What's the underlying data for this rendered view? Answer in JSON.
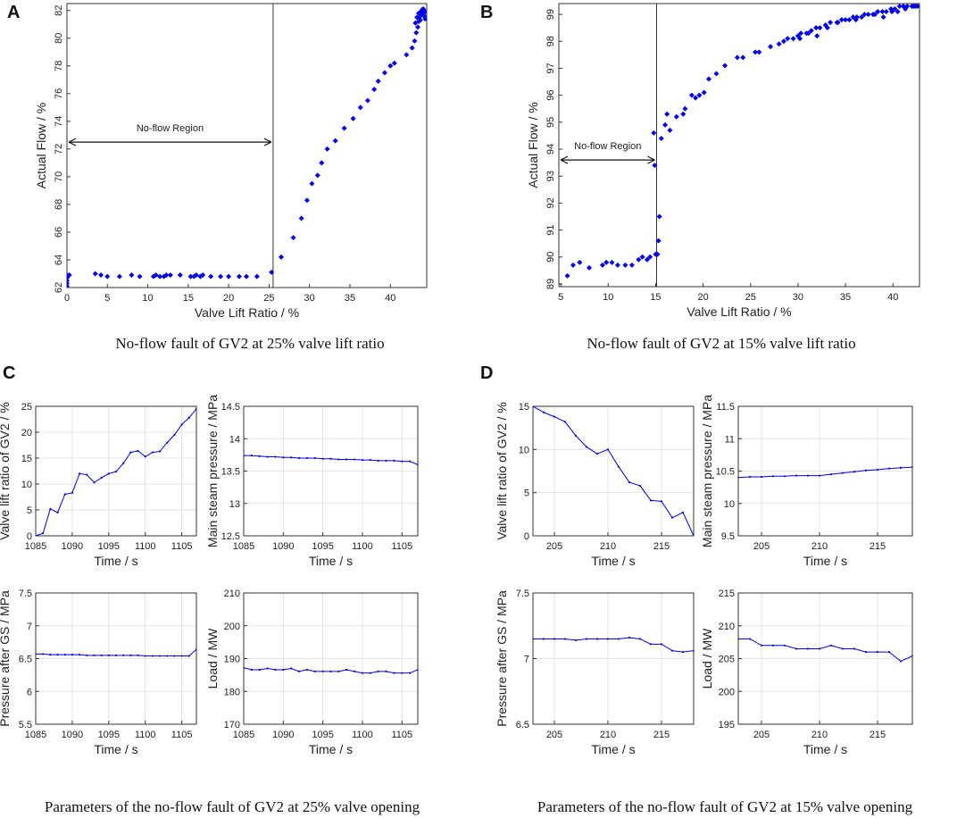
{
  "figure": {
    "panel_labels": [
      "A",
      "B",
      "C",
      "D"
    ],
    "captions": {
      "a": "No-flow fault of GV2 at 25% valve lift ratio",
      "b": "No-flow fault of GV2 at 15% valve lift ratio",
      "c": "Parameters of the no-flow fault of GV2 at 25% valve opening",
      "d": "Parameters of the no-flow fault of GV2 at 15% valve opening"
    }
  },
  "chart_data": [
    {
      "id": "A",
      "type": "scatter",
      "xlabel": "Valve Lift Ratio / %",
      "ylabel": "Actual Flow / %",
      "xlim": [
        0,
        44.5
      ],
      "ylim": [
        62,
        82.5
      ],
      "xticks": [
        0,
        5,
        10,
        15,
        20,
        25,
        30,
        35,
        40
      ],
      "yticks": [
        62,
        64,
        66,
        68,
        70,
        72,
        74,
        76,
        78,
        80,
        82
      ],
      "marker_color": "#0000ee",
      "vline": 25.5,
      "annotation": {
        "text": "No-flow Region",
        "x_from": 0,
        "x_to": 25.5,
        "y": 72.5
      },
      "x": [
        0,
        0,
        0,
        0,
        0,
        0.3,
        3.5,
        4.2,
        5,
        6.5,
        8,
        9,
        10.7,
        11,
        11.5,
        12,
        12.3,
        12.8,
        14,
        15.3,
        15.7,
        16,
        16.5,
        16.8,
        17.8,
        19,
        20,
        21.3,
        22.2,
        23.5,
        25.3,
        26.5,
        28,
        29,
        29.7,
        30.3,
        31,
        31.5,
        32.2,
        33.2,
        34.3,
        35.4,
        36.3,
        37.2,
        38,
        38.5,
        39.3,
        40,
        40.5,
        42,
        42.7,
        43,
        43.2,
        43.4,
        43.5,
        43.6,
        43.7,
        43.8,
        43.9,
        44,
        44.1,
        44.2,
        44.3,
        43.1,
        43.3,
        43.5,
        43.7,
        43.9,
        44.1,
        44.3
      ],
      "y": [
        62.1,
        62.3,
        62.5,
        62.7,
        62.9,
        62.9,
        63,
        62.9,
        62.8,
        62.8,
        62.9,
        62.8,
        62.8,
        62.9,
        62.8,
        62.8,
        62.9,
        62.9,
        62.9,
        62.8,
        62.8,
        62.9,
        62.8,
        62.9,
        62.8,
        62.8,
        62.8,
        62.8,
        62.8,
        62.8,
        63.1,
        64.2,
        65.6,
        67,
        68.3,
        69.5,
        70.1,
        71,
        72,
        72.6,
        73.5,
        74.2,
        75,
        75.5,
        76.3,
        76.9,
        77.5,
        78,
        78.2,
        78.8,
        79.3,
        79.8,
        80.4,
        80.8,
        81.2,
        81.5,
        81.7,
        81.9,
        82,
        82.1,
        81.8,
        81.6,
        81.9,
        81.1,
        81.5,
        81.8,
        81.3,
        81.7,
        82.1,
        81.4
      ]
    },
    {
      "id": "B",
      "type": "scatter",
      "xlabel": "Valve Lift Ratio / %",
      "ylabel": "Actual Flow / %",
      "xlim": [
        4.8,
        42.8
      ],
      "ylim": [
        88.9,
        99.4
      ],
      "xticks": [
        5,
        10,
        15,
        20,
        25,
        30,
        35,
        40
      ],
      "yticks": [
        89,
        90,
        91,
        92,
        93,
        94,
        95,
        96,
        97,
        98,
        99
      ],
      "marker_color": "#0000ee",
      "vline": 15.1,
      "annotation": {
        "text": "No-flow Region",
        "x_from": 4.8,
        "x_to": 15.1,
        "y": 93.6
      },
      "x": [
        5.7,
        6.3,
        7,
        8,
        9.4,
        9.8,
        10.4,
        11,
        11.8,
        12.5,
        13.2,
        13.6,
        14.1,
        14.4,
        14.8,
        14.9,
        15,
        15.2,
        15.3,
        15.4,
        15.6,
        16,
        16.2,
        16.5,
        17.2,
        17.9,
        18.1,
        18.8,
        19.2,
        19.6,
        20.1,
        20.6,
        21.4,
        22.3,
        23.6,
        24.2,
        25.5,
        25.9,
        27.1,
        28,
        28.5,
        28.9,
        29.5,
        30,
        30.3,
        30.9,
        31.4,
        31.9,
        32.3,
        32.9,
        33.4,
        34.1,
        34.6,
        35,
        35.4,
        35.8,
        36.2,
        36.7,
        37,
        37.4,
        37.9,
        38.4,
        38.9,
        39.3,
        39.8,
        40.2,
        40.7,
        41.1,
        41.5,
        42,
        42.4,
        30.2,
        31.1,
        32,
        33.1,
        34.2,
        36.1,
        38.1,
        39.9,
        41.3,
        42.2,
        42.6,
        39,
        40.5
      ],
      "y": [
        89.3,
        89.7,
        89.8,
        89.6,
        89.7,
        89.8,
        89.8,
        89.7,
        89.7,
        89.7,
        89.9,
        90,
        89.9,
        90,
        94.6,
        93.4,
        90.1,
        90.1,
        90.6,
        91.5,
        94.4,
        94.9,
        95.3,
        94.7,
        95.2,
        95.3,
        95.5,
        96,
        95.9,
        96,
        96.1,
        96.6,
        96.8,
        97.1,
        97.4,
        97.4,
        97.6,
        97.6,
        97.8,
        97.9,
        98,
        98.1,
        98.1,
        98.2,
        98.3,
        98.3,
        98.4,
        98.5,
        98.5,
        98.6,
        98.7,
        98.7,
        98.8,
        98.8,
        98.8,
        98.9,
        98.9,
        98.9,
        99,
        99,
        99,
        99.1,
        99.1,
        99.1,
        99.2,
        99.2,
        99.3,
        99.3,
        99.3,
        99.3,
        99.3,
        98.1,
        98.3,
        98.2,
        98.5,
        98.7,
        98.8,
        99,
        99.1,
        99.2,
        99.3,
        99.3,
        98.9,
        99.1
      ]
    },
    {
      "id": "C1",
      "type": "line",
      "xlabel": "Time / s",
      "ylabel": "Valve lift ratio of GV2 / %",
      "xlim": [
        1085,
        1107
      ],
      "ylim": [
        0,
        25
      ],
      "xticks": [
        1085,
        1090,
        1095,
        1100,
        1105
      ],
      "yticks": [
        0,
        5,
        10,
        15,
        20,
        25
      ],
      "line_color": "#0000ee",
      "x": [
        1085,
        1086,
        1087,
        1088,
        1089,
        1090,
        1091,
        1092,
        1093,
        1094,
        1095,
        1096,
        1097,
        1098,
        1099,
        1100,
        1101,
        1102,
        1103,
        1104,
        1105,
        1106,
        1107
      ],
      "y": [
        0,
        0.5,
        5.2,
        4.5,
        8,
        8.3,
        12,
        11.8,
        10.3,
        11.2,
        12,
        12.4,
        14,
        16.1,
        16.4,
        15.3,
        16.1,
        16.3,
        18,
        19.5,
        21.5,
        22.8,
        24.5
      ]
    },
    {
      "id": "C2",
      "type": "line",
      "xlabel": "Time / s",
      "ylabel": "Main steam pressure / MPa",
      "xlim": [
        1085,
        1107
      ],
      "ylim": [
        12.5,
        14.5
      ],
      "xticks": [
        1085,
        1090,
        1095,
        1100,
        1105
      ],
      "yticks": [
        12.5,
        13,
        13.5,
        14,
        14.5
      ],
      "line_color": "#0000ee",
      "x": [
        1085,
        1086,
        1087,
        1088,
        1089,
        1090,
        1091,
        1092,
        1093,
        1094,
        1095,
        1096,
        1097,
        1098,
        1099,
        1100,
        1101,
        1102,
        1103,
        1104,
        1105,
        1106,
        1107
      ],
      "y": [
        13.74,
        13.74,
        13.73,
        13.72,
        13.72,
        13.71,
        13.71,
        13.7,
        13.7,
        13.7,
        13.69,
        13.69,
        13.68,
        13.68,
        13.68,
        13.67,
        13.67,
        13.66,
        13.66,
        13.66,
        13.65,
        13.65,
        13.6
      ]
    },
    {
      "id": "C3",
      "type": "line",
      "xlabel": "Time / s",
      "ylabel": "Pressure after GS / MPa",
      "xlim": [
        1085,
        1107
      ],
      "ylim": [
        5.5,
        7.5
      ],
      "xticks": [
        1085,
        1090,
        1095,
        1100,
        1105
      ],
      "yticks": [
        5.5,
        6,
        6.5,
        7,
        7.5
      ],
      "line_color": "#0000ee",
      "x": [
        1085,
        1086,
        1087,
        1088,
        1089,
        1090,
        1091,
        1092,
        1093,
        1094,
        1095,
        1096,
        1097,
        1098,
        1099,
        1100,
        1101,
        1102,
        1103,
        1104,
        1105,
        1106,
        1107
      ],
      "y": [
        6.57,
        6.57,
        6.56,
        6.56,
        6.56,
        6.56,
        6.56,
        6.55,
        6.55,
        6.55,
        6.55,
        6.55,
        6.55,
        6.55,
        6.55,
        6.54,
        6.54,
        6.54,
        6.54,
        6.54,
        6.54,
        6.54,
        6.64
      ]
    },
    {
      "id": "C4",
      "type": "line",
      "xlabel": "Time / s",
      "ylabel": "Load / MW",
      "xlim": [
        1085,
        1107
      ],
      "ylim": [
        170,
        210
      ],
      "xticks": [
        1085,
        1090,
        1095,
        1100,
        1105
      ],
      "yticks": [
        170,
        180,
        190,
        200,
        210
      ],
      "line_color": "#0000ee",
      "x": [
        1085,
        1086,
        1087,
        1088,
        1089,
        1090,
        1091,
        1092,
        1093,
        1094,
        1095,
        1096,
        1097,
        1098,
        1099,
        1100,
        1101,
        1102,
        1103,
        1104,
        1105,
        1106,
        1107
      ],
      "y": [
        187.2,
        186.6,
        186.6,
        187,
        186.6,
        186.6,
        187,
        186.1,
        186.6,
        186.1,
        186.1,
        186.1,
        186.1,
        186.6,
        186.1,
        185.6,
        185.6,
        186.1,
        186.1,
        185.6,
        185.6,
        185.6,
        186.6
      ]
    },
    {
      "id": "D1",
      "type": "line",
      "xlabel": "Time / s",
      "ylabel": "Valve lift ratio of GV2 / %",
      "xlim": [
        203,
        218
      ],
      "ylim": [
        0,
        15
      ],
      "xticks": [
        205,
        210,
        215
      ],
      "yticks": [
        0,
        5,
        10,
        15
      ],
      "line_color": "#0000ee",
      "x": [
        203,
        204,
        205,
        206,
        207,
        208,
        209,
        210,
        211,
        212,
        213,
        214,
        215,
        216,
        217,
        218
      ],
      "y": [
        15,
        14.3,
        13.8,
        13.2,
        11.6,
        10.3,
        9.5,
        10,
        8,
        6.2,
        5.8,
        4.1,
        4,
        2.1,
        2.7,
        0
      ]
    },
    {
      "id": "D2",
      "type": "line",
      "xlabel": "Time / s",
      "ylabel": "Main steam pressure / MPa",
      "xlim": [
        203,
        218
      ],
      "ylim": [
        9.5,
        11.5
      ],
      "xticks": [
        205,
        210,
        215
      ],
      "yticks": [
        9.5,
        10,
        10.5,
        11,
        11.5
      ],
      "line_color": "#0000ee",
      "x": [
        203,
        204,
        205,
        206,
        207,
        208,
        209,
        210,
        211,
        212,
        213,
        214,
        215,
        216,
        217,
        218
      ],
      "y": [
        10.4,
        10.41,
        10.41,
        10.42,
        10.42,
        10.43,
        10.43,
        10.43,
        10.45,
        10.47,
        10.49,
        10.51,
        10.52,
        10.54,
        10.55,
        10.56
      ]
    },
    {
      "id": "D3",
      "type": "line",
      "xlabel": "Time / s",
      "ylabel": "Pressure after GS / MPa",
      "xlim": [
        203,
        218
      ],
      "ylim": [
        6.5,
        7.5
      ],
      "xticks": [
        205,
        210,
        215
      ],
      "yticks": [
        6.5,
        7,
        7.5
      ],
      "line_color": "#0000ee",
      "x": [
        203,
        204,
        205,
        206,
        207,
        208,
        209,
        210,
        211,
        212,
        213,
        214,
        215,
        216,
        217,
        218
      ],
      "y": [
        7.15,
        7.15,
        7.15,
        7.15,
        7.14,
        7.15,
        7.15,
        7.15,
        7.15,
        7.16,
        7.15,
        7.11,
        7.11,
        7.06,
        7.05,
        7.06
      ]
    },
    {
      "id": "D4",
      "type": "line",
      "xlabel": "Time / s",
      "ylabel": "Load / MW",
      "xlim": [
        203,
        218
      ],
      "ylim": [
        195,
        215
      ],
      "xticks": [
        205,
        210,
        215
      ],
      "yticks": [
        195,
        200,
        205,
        210,
        215
      ],
      "line_color": "#0000ee",
      "x": [
        203,
        204,
        205,
        206,
        207,
        208,
        209,
        210,
        211,
        212,
        213,
        214,
        215,
        216,
        217,
        218
      ],
      "y": [
        208,
        208,
        207,
        207,
        207,
        206.5,
        206.5,
        206.5,
        207,
        206.5,
        206.5,
        206,
        206,
        206,
        204.6,
        205.4
      ]
    }
  ]
}
